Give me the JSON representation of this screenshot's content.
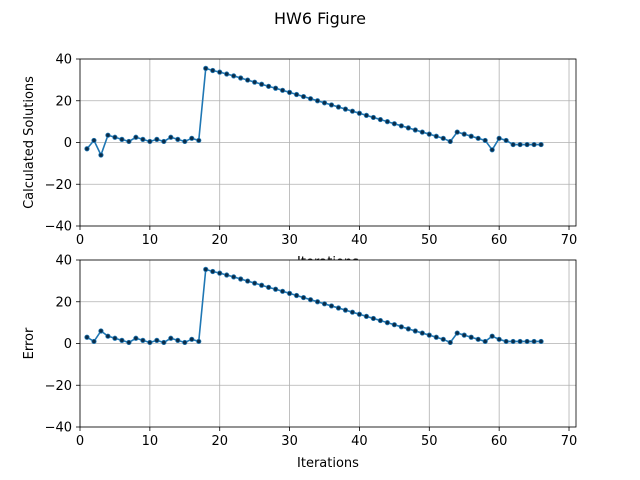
{
  "figure": {
    "title": "HW6 Figure"
  },
  "chart_data": [
    {
      "type": "line",
      "ylabel": "Calculated Solutions",
      "xlabel": "Iterations",
      "xlim": [
        0,
        71
      ],
      "ylim": [
        -40,
        40
      ],
      "xticks": [
        0,
        10,
        20,
        30,
        40,
        50,
        60,
        70
      ],
      "yticks": [
        -40,
        -20,
        0,
        20,
        40
      ],
      "grid": true,
      "color": "#1f77b4",
      "marker": "o",
      "x": [
        1,
        2,
        3,
        4,
        5,
        6,
        7,
        8,
        9,
        10,
        11,
        12,
        13,
        14,
        15,
        16,
        17,
        18,
        19,
        20,
        21,
        22,
        23,
        24,
        25,
        26,
        27,
        28,
        29,
        30,
        31,
        32,
        33,
        34,
        35,
        36,
        37,
        38,
        39,
        40,
        41,
        42,
        43,
        44,
        45,
        46,
        47,
        48,
        49,
        50,
        51,
        52,
        53,
        54,
        55,
        56,
        57,
        58,
        59,
        60,
        61,
        62,
        63,
        64,
        65,
        66
      ],
      "y": [
        -3,
        1,
        -6,
        3.5,
        2.5,
        1.5,
        0.5,
        2.5,
        1.5,
        0.5,
        1.5,
        0.5,
        2.5,
        1.5,
        0.5,
        2,
        1,
        35.5,
        34.5,
        33.7,
        32.8,
        31.9,
        30.9,
        29.9,
        28.9,
        27.9,
        26.9,
        26,
        25,
        24,
        23,
        22,
        21,
        20,
        19,
        18,
        17,
        16,
        15,
        14,
        13,
        12,
        11,
        10,
        9,
        8,
        7,
        6,
        5,
        4,
        3,
        2,
        0.5,
        5,
        4,
        3,
        2,
        1,
        -3.5,
        2,
        1,
        -1,
        -1,
        -1,
        -1,
        -1
      ]
    },
    {
      "type": "line",
      "ylabel": "Error",
      "xlabel": "Iterations",
      "xlim": [
        0,
        71
      ],
      "ylim": [
        -40,
        40
      ],
      "xticks": [
        0,
        10,
        20,
        30,
        40,
        50,
        60,
        70
      ],
      "yticks": [
        -40,
        -20,
        0,
        20,
        40
      ],
      "grid": true,
      "color": "#1f77b4",
      "marker": "o",
      "x": [
        1,
        2,
        3,
        4,
        5,
        6,
        7,
        8,
        9,
        10,
        11,
        12,
        13,
        14,
        15,
        16,
        17,
        18,
        19,
        20,
        21,
        22,
        23,
        24,
        25,
        26,
        27,
        28,
        29,
        30,
        31,
        32,
        33,
        34,
        35,
        36,
        37,
        38,
        39,
        40,
        41,
        42,
        43,
        44,
        45,
        46,
        47,
        48,
        49,
        50,
        51,
        52,
        53,
        54,
        55,
        56,
        57,
        58,
        59,
        60,
        61,
        62,
        63,
        64,
        65,
        66
      ],
      "y": [
        3,
        1,
        6,
        3.5,
        2.5,
        1.5,
        0.5,
        2.5,
        1.5,
        0.5,
        1.5,
        0.5,
        2.5,
        1.5,
        0.5,
        2,
        1,
        35.5,
        34.5,
        33.7,
        32.8,
        31.9,
        30.9,
        29.9,
        28.9,
        27.9,
        26.9,
        26,
        25,
        24,
        23,
        22,
        21,
        20,
        19,
        18,
        17,
        16,
        15,
        14,
        13,
        12,
        11,
        10,
        9,
        8,
        7,
        6,
        5,
        4,
        3,
        2,
        0.5,
        5,
        4,
        3,
        2,
        1,
        3.5,
        2,
        1,
        1,
        1,
        1,
        1,
        1
      ]
    }
  ]
}
